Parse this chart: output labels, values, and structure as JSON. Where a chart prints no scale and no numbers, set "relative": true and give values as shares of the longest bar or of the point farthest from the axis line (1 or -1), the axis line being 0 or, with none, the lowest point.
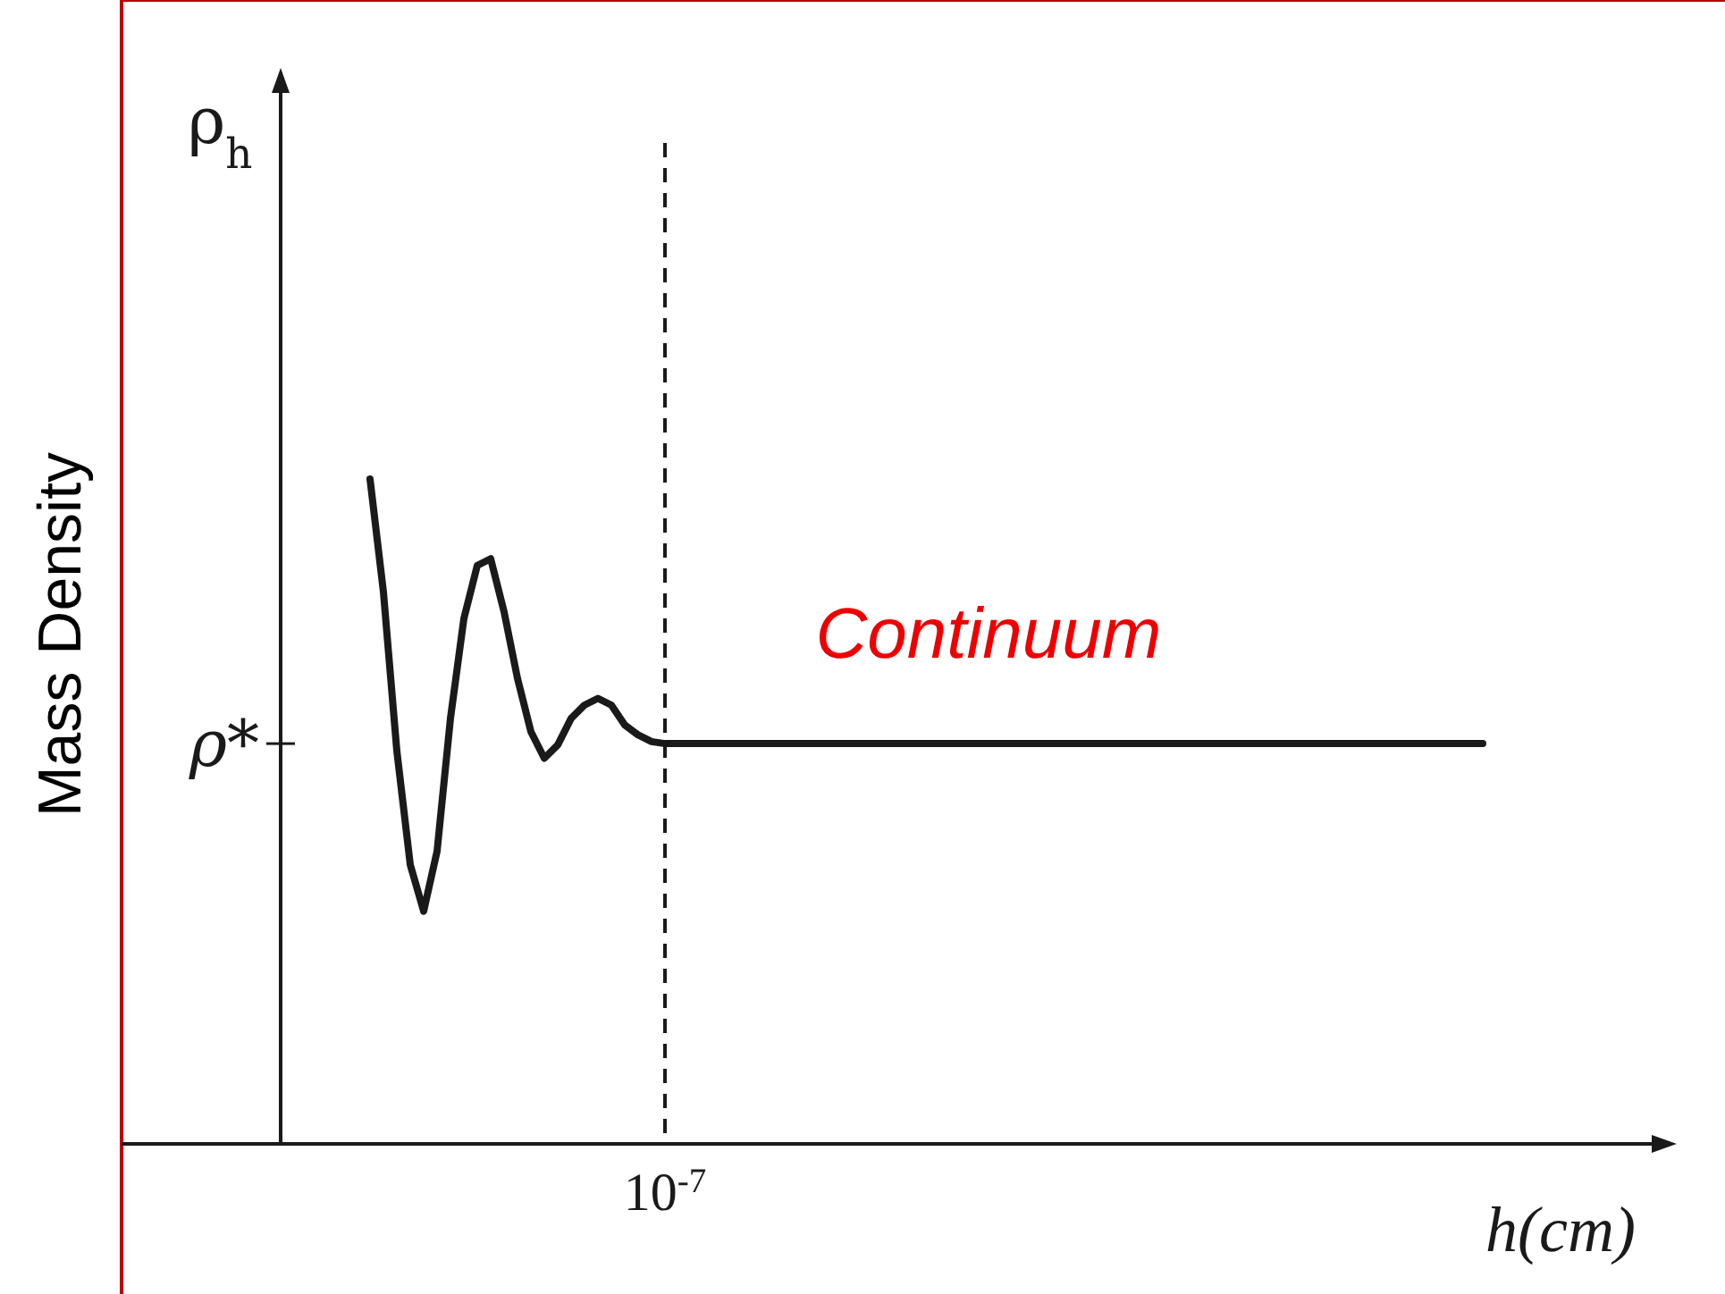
{
  "chart_data": {
    "type": "line",
    "relative": true,
    "xlabel": "h(cm)",
    "ylabel": "Mass Density",
    "annotations": [
      "ρ$_{h}$",
      "Continuum"
    ],
    "categories": [
      null,
      null,
      null,
      null,
      null,
      null,
      null,
      null,
      null,
      null,
      null,
      null,
      null,
      null,
      null,
      null,
      null,
      null,
      null,
      null,
      null,
      null,
      null,
      null,
      null,
      null,
      null,
      null,
      null,
      null,
      null,
      null,
      null,
      null,
      null,
      null,
      null,
      null,
      null,
      null,
      null,
      null,
      null,
      null,
      null,
      null,
      null,
      null,
      null,
      null,
      null,
      null,
      null,
      null,
      null,
      null,
      null,
      null,
      null,
      null,
      null,
      null,
      null,
      null,
      null,
      null,
      null,
      null,
      null,
      null,
      null,
      null,
      null,
      null,
      null,
      null,
      null,
      null,
      null,
      null,
      null,
      null,
      null,
      null
    ],
    "series": [
      {
        "color": "#1a1a1a",
        "values": [
          1.0,
          0.83,
          0.591,
          0.42,
          0.35,
          0.44,
          0.64,
          0.79,
          0.87,
          0.88,
          0.8,
          0.7,
          0.62,
          0.58,
          0.6,
          0.64,
          0.66,
          0.67,
          0.66,
          0.63,
          0.615,
          0.605,
          0.602,
          0.602,
          0.602,
          0.602,
          0.602,
          0.602,
          0.602,
          0.602,
          0.602,
          0.602,
          0.602,
          0.602,
          0.602,
          0.602,
          0.602,
          0.602,
          0.602,
          0.602,
          0.602,
          0.602,
          0.602,
          0.602,
          0.602,
          0.602,
          0.602,
          0.602,
          0.602,
          0.602,
          0.602,
          0.602,
          0.602,
          0.602,
          0.602,
          0.602,
          0.602,
          0.602,
          0.602,
          0.602,
          0.602,
          0.602,
          0.602,
          0.602,
          0.602,
          0.602,
          0.602,
          0.602,
          0.602,
          0.602,
          0.602,
          0.602,
          0.602,
          0.602,
          0.602,
          0.602,
          0.602,
          0.602,
          0.602,
          0.602,
          0.602,
          0.602,
          0.602,
          0.602
        ]
      }
    ],
    "ref_lines": [
      {
        "axis": "x",
        "value": "10$^{-7}$",
        "line_style": "dashed",
        "color": "#1a1a1a"
      },
      {
        "axis": "y",
        "value": 0.602,
        "label": "ρ*"
      }
    ],
    "grid": false,
    "marker": "none",
    "line_style": "solid"
  }
}
